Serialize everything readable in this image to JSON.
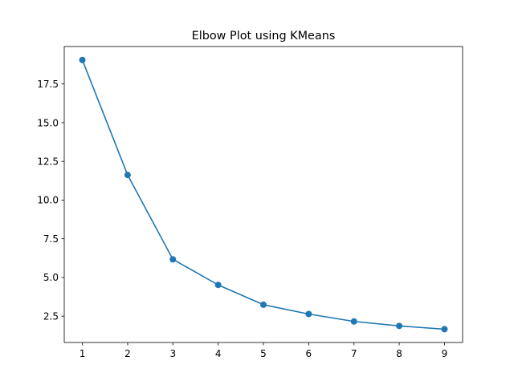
{
  "chart_data": {
    "type": "line",
    "title": "Elbow Plot using KMeans",
    "xlabel": "",
    "ylabel": "",
    "x": [
      1,
      2,
      3,
      4,
      5,
      6,
      7,
      8,
      9
    ],
    "series": [
      {
        "values": [
          19.05,
          11.62,
          6.17,
          4.52,
          3.24,
          2.64,
          2.16,
          1.87,
          1.66
        ],
        "color": "#1f77b4",
        "marker": "circle"
      }
    ],
    "xticks": [
      "1",
      "2",
      "3",
      "4",
      "5",
      "6",
      "7",
      "8",
      "9"
    ],
    "yticks": [
      2.5,
      5.0,
      7.5,
      10.0,
      12.5,
      15.0,
      17.5
    ],
    "ytick_labels": [
      "2.5",
      "5.0",
      "7.5",
      "10.0",
      "12.5",
      "15.0",
      "17.5"
    ],
    "xlim": [
      0.6,
      9.4
    ],
    "ylim": [
      0.8,
      19.92
    ],
    "grid": false,
    "legend": "none"
  }
}
